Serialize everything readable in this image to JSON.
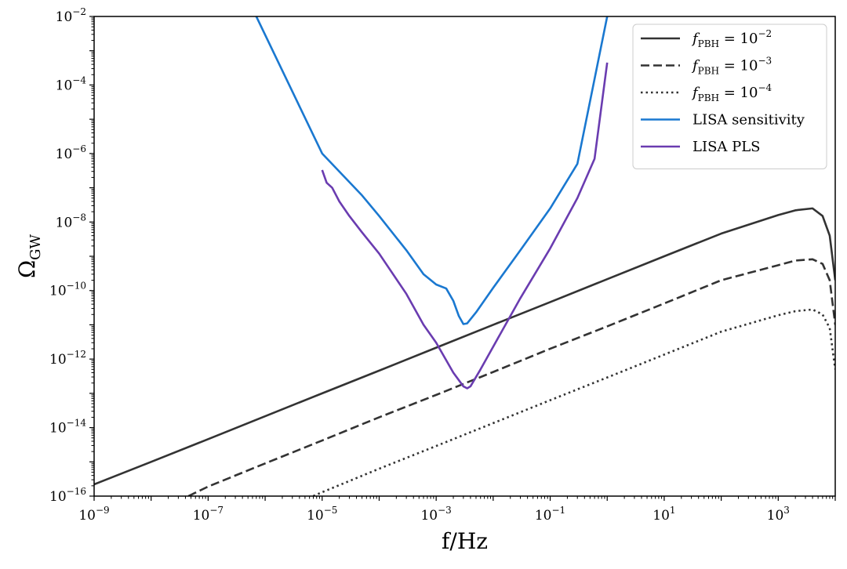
{
  "chart_data": {
    "type": "line",
    "x_scale": "log",
    "y_scale": "log",
    "xlim": [
      1e-09,
      10000
    ],
    "ylim": [
      1e-16,
      0.01
    ],
    "xlabel": {
      "main": "f/Hz"
    },
    "ylabel": {
      "main": "Ω",
      "sub": "GW"
    },
    "x_ticks": [
      {
        "value": 1e-09,
        "base": "10",
        "exp": "−9"
      },
      {
        "value": 1e-07,
        "base": "10",
        "exp": "−7"
      },
      {
        "value": 1e-05,
        "base": "10",
        "exp": "−5"
      },
      {
        "value": 0.001,
        "base": "10",
        "exp": "−3"
      },
      {
        "value": 0.1,
        "base": "10",
        "exp": "−1"
      },
      {
        "value": 10,
        "base": "10",
        "exp": "1"
      },
      {
        "value": 1000,
        "base": "10",
        "exp": "3"
      }
    ],
    "y_ticks": [
      {
        "value": 1e-16,
        "base": "10",
        "exp": "−16"
      },
      {
        "value": 1e-14,
        "base": "10",
        "exp": "−14"
      },
      {
        "value": 1e-12,
        "base": "10",
        "exp": "−12"
      },
      {
        "value": 1e-10,
        "base": "10",
        "exp": "−10"
      },
      {
        "value": 1e-08,
        "base": "10",
        "exp": "−8"
      },
      {
        "value": 1e-06,
        "base": "10",
        "exp": "−6"
      },
      {
        "value": 0.0001,
        "base": "10",
        "exp": "−4"
      },
      {
        "value": 0.01,
        "base": "10",
        "exp": "−2"
      }
    ],
    "legend_placement": "top-right",
    "grid": false,
    "series": [
      {
        "name": {
          "f": "f",
          "sub": "PBH",
          "eq": " = 10",
          "sup": "−2"
        },
        "color": "#333333",
        "dash": "solid",
        "points": [
          [
            1e-09,
            2.2e-16
          ],
          [
            1e-08,
            1e-15
          ],
          [
            1e-07,
            4.6e-15
          ],
          [
            1e-06,
            2.15e-14
          ],
          [
            1e-05,
            1e-13
          ],
          [
            0.0001,
            4.6e-13
          ],
          [
            0.001,
            2.15e-12
          ],
          [
            0.01,
            1e-11
          ],
          [
            0.1,
            4.6e-11
          ],
          [
            1,
            2.15e-10
          ],
          [
            10,
            1e-09
          ],
          [
            100,
            4.6e-09
          ],
          [
            1000,
            1.6e-08
          ],
          [
            2000,
            2.2e-08
          ],
          [
            4000,
            2.5e-08
          ],
          [
            6000,
            1.5e-08
          ],
          [
            8000,
            4e-09
          ],
          [
            10000,
            2e-10
          ]
        ]
      },
      {
        "name": {
          "f": "f",
          "sub": "PBH",
          "eq": " = 10",
          "sup": "−3"
        },
        "color": "#333333",
        "dash": "dashed",
        "points": [
          [
            4.5e-08,
            1e-16
          ],
          [
            1e-07,
            1.9e-16
          ],
          [
            1e-06,
            9e-16
          ],
          [
            1e-05,
            4.2e-15
          ],
          [
            0.0001,
            2e-14
          ],
          [
            0.001,
            9e-14
          ],
          [
            0.01,
            4.2e-13
          ],
          [
            0.1,
            2e-12
          ],
          [
            1,
            9e-12
          ],
          [
            10,
            4.2e-11
          ],
          [
            100,
            2e-10
          ],
          [
            1000,
            5.5e-10
          ],
          [
            2000,
            7.5e-10
          ],
          [
            4000,
            8.2e-10
          ],
          [
            6000,
            6e-10
          ],
          [
            8000,
            2e-10
          ],
          [
            10000,
            1e-11
          ]
        ]
      },
      {
        "name": {
          "f": "f",
          "sub": "PBH",
          "eq": " = 10",
          "sup": "−4"
        },
        "color": "#333333",
        "dash": "dotted",
        "points": [
          [
            7e-06,
            1e-16
          ],
          [
            1e-05,
            1.3e-16
          ],
          [
            0.0001,
            6.3e-16
          ],
          [
            0.001,
            2.9e-15
          ],
          [
            0.01,
            1.35e-14
          ],
          [
            0.1,
            6.3e-14
          ],
          [
            1,
            2.9e-13
          ],
          [
            10,
            1.35e-12
          ],
          [
            100,
            6.3e-12
          ],
          [
            1000,
            1.9e-11
          ],
          [
            2000,
            2.5e-11
          ],
          [
            4000,
            2.8e-11
          ],
          [
            6000,
            2e-11
          ],
          [
            8000,
            8e-12
          ],
          [
            10000,
            5e-13
          ]
        ]
      },
      {
        "name": {
          "text": "LISA sensitivity"
        },
        "color": "#1a78d0",
        "dash": "solid",
        "points": [
          [
            7e-07,
            0.01
          ],
          [
            1e-05,
            1e-06
          ],
          [
            5e-05,
            6e-08
          ],
          [
            0.0001,
            1.5e-08
          ],
          [
            0.0003,
            1.5e-09
          ],
          [
            0.0006,
            3e-10
          ],
          [
            0.001,
            1.5e-10
          ],
          [
            0.0015,
            1.15e-10
          ],
          [
            0.002,
            5e-11
          ],
          [
            0.0025,
            1.8e-11
          ],
          [
            0.003,
            1.05e-11
          ],
          [
            0.0035,
            1.1e-11
          ],
          [
            0.005,
            2.3e-11
          ],
          [
            0.01,
            1.2e-10
          ],
          [
            0.03,
            1.5e-09
          ],
          [
            0.1,
            2.5e-08
          ],
          [
            0.3,
            5e-07
          ],
          [
            1,
            0.01
          ]
        ]
      },
      {
        "name": {
          "text": "LISA PLS"
        },
        "color": "#6a3cb0",
        "dash": "solid",
        "points": [
          [
            1e-05,
            3.3e-07
          ],
          [
            1.2e-05,
            1.4e-07
          ],
          [
            1.5e-05,
            1e-07
          ],
          [
            2e-05,
            4e-08
          ],
          [
            3e-05,
            1.5e-08
          ],
          [
            5e-05,
            5e-09
          ],
          [
            0.0001,
            1.2e-09
          ],
          [
            0.0003,
            8e-11
          ],
          [
            0.0006,
            1e-11
          ],
          [
            0.001,
            3e-12
          ],
          [
            0.002,
            4e-13
          ],
          [
            0.003,
            1.6e-13
          ],
          [
            0.0035,
            1.4e-13
          ],
          [
            0.004,
            1.6e-13
          ],
          [
            0.006,
            5e-13
          ],
          [
            0.01,
            2.3e-12
          ],
          [
            0.03,
            6e-11
          ],
          [
            0.1,
            1.7e-09
          ],
          [
            0.3,
            5e-08
          ],
          [
            0.6,
            7e-07
          ],
          [
            1,
            0.00045
          ]
        ]
      }
    ]
  }
}
